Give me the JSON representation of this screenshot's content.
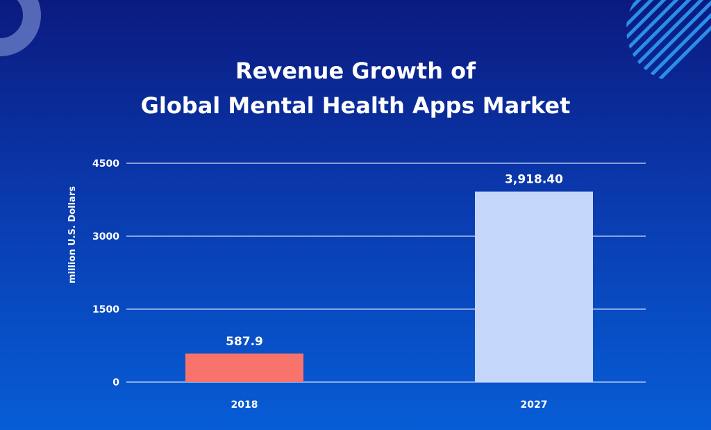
{
  "chart_data": {
    "type": "bar",
    "title": [
      "Revenue Growth of",
      "Global Mental Health Apps Market"
    ],
    "xlabel": "",
    "ylabel": "million U.S. Dollars",
    "ylim": [
      0,
      4500
    ],
    "yticks": [
      0,
      1500,
      3000,
      4500
    ],
    "ytick_labels": [
      "0",
      "1500",
      "3000",
      "4500"
    ],
    "categories": [
      "2018",
      "2027"
    ],
    "values": [
      587.9,
      3918.4
    ],
    "value_labels": [
      "587.9",
      "3,918.40"
    ],
    "colors": {
      "bars": [
        "#f8736b",
        "#c4d6fa"
      ],
      "text": "#ffffff",
      "gridline": "#d5def5"
    },
    "grid": true
  }
}
